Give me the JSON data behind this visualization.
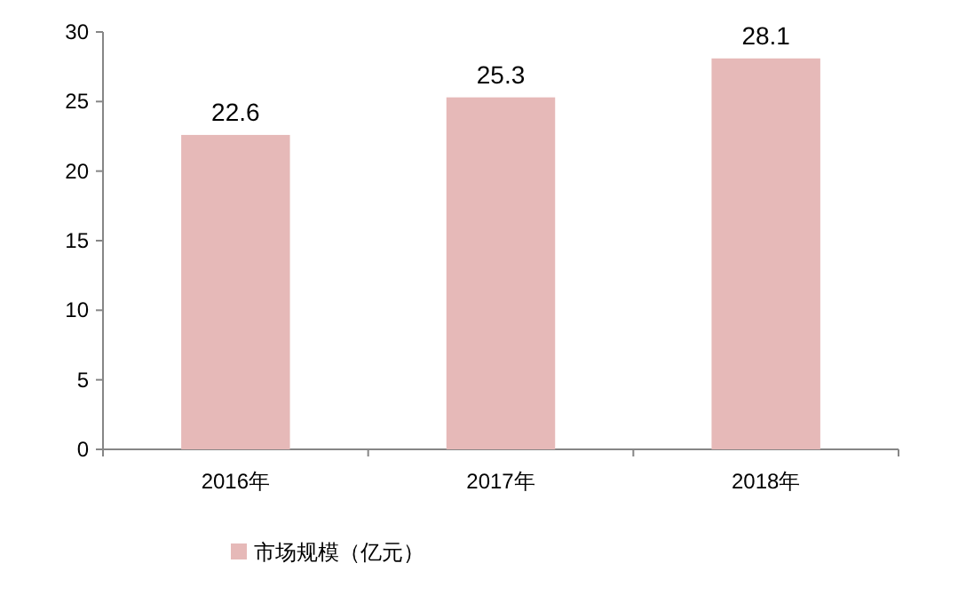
{
  "chart_data": {
    "type": "bar",
    "categories": [
      "2016年",
      "2017年",
      "2018年"
    ],
    "series": [
      {
        "name": "市场规模（亿元）",
        "color": "#e6b9b8",
        "values": [
          22.6,
          25.3,
          28.1
        ]
      }
    ],
    "ylim": [
      0,
      30
    ],
    "yticks": [
      0,
      5,
      10,
      15,
      20,
      25,
      30
    ],
    "data_labels": true,
    "legend": "bottom"
  }
}
